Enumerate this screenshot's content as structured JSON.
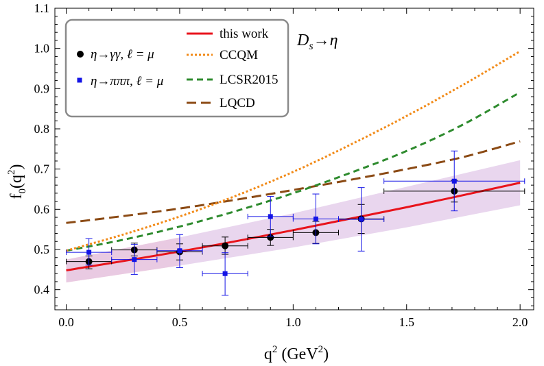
{
  "chart_data": {
    "type": "line",
    "title": "",
    "annotation": "D_s→η",
    "annotation_parts": [
      "D",
      "s",
      "→η"
    ],
    "xlabel": "q² (GeV²)",
    "xlabel_parts": [
      "q",
      "2",
      " (GeV",
      "2",
      ")"
    ],
    "ylabel": "f₀(q²)",
    "ylabel_parts": [
      "f",
      "0",
      "(q",
      "2",
      ")"
    ],
    "xlim": [
      -0.05,
      2.06
    ],
    "ylim": [
      0.35,
      1.1
    ],
    "xticks": [
      0.0,
      0.5,
      1.0,
      1.5,
      2.0
    ],
    "xtick_labels": [
      "0.0",
      "0.5",
      "1.0",
      "1.5",
      "2.0"
    ],
    "yticks": [
      0.4,
      0.5,
      0.6,
      0.7,
      0.8,
      0.9,
      1.0,
      1.1
    ],
    "ytick_labels": [
      "0.4",
      "0.5",
      "0.6",
      "0.7",
      "0.8",
      "0.9",
      "1.0",
      "1.1"
    ],
    "grid": false,
    "legend_position": "top-left",
    "curves": [
      {
        "name": "this work",
        "color": "#e8141c",
        "dash": "solid",
        "x": [
          0.0,
          0.5,
          1.0,
          1.5,
          2.0
        ],
        "y": [
          0.448,
          0.495,
          0.548,
          0.605,
          0.666
        ]
      },
      {
        "name": "CCQM",
        "color": "#f28a17",
        "dash": "dotted",
        "x": [
          0.0,
          0.25,
          0.5,
          0.75,
          1.0,
          1.25,
          1.5,
          1.75,
          2.0
        ],
        "y": [
          0.497,
          0.537,
          0.582,
          0.634,
          0.693,
          0.76,
          0.832,
          0.91,
          0.993
        ]
      },
      {
        "name": "LCSR2015",
        "color": "#2e8b2e",
        "dash": "dashed",
        "x": [
          0.0,
          0.25,
          0.5,
          0.75,
          1.0,
          1.25,
          1.5,
          1.75,
          2.0
        ],
        "y": [
          0.497,
          0.524,
          0.557,
          0.596,
          0.64,
          0.69,
          0.745,
          0.811,
          0.891
        ]
      },
      {
        "name": "LQCD",
        "color": "#8b4a14",
        "dash": "longdash",
        "x": [
          0.0,
          0.25,
          0.5,
          0.75,
          1.0,
          1.25,
          1.5,
          1.75,
          2.0
        ],
        "y": [
          0.566,
          0.583,
          0.602,
          0.624,
          0.648,
          0.673,
          0.7,
          0.73,
          0.769
        ]
      }
    ],
    "bands": [
      {
        "name": "this work uncertainty (low q²)",
        "color": "#ffc8c8",
        "x": [
          0.0,
          0.5
        ],
        "y_low": [
          0.418,
          0.46
        ],
        "y_high": [
          0.475,
          0.53
        ]
      },
      {
        "name": "this work uncertainty",
        "color": "#e2c8e8",
        "x": [
          0.0,
          0.5,
          1.0,
          1.5,
          2.0
        ],
        "y_low": [
          0.418,
          0.46,
          0.505,
          0.555,
          0.61
        ],
        "y_high": [
          0.475,
          0.53,
          0.59,
          0.656,
          0.722
        ]
      }
    ],
    "series": [
      {
        "name": "η→γγ, ℓ = μ",
        "marker": "circle",
        "color": "#000000",
        "points": [
          {
            "x": 0.1,
            "y": 0.47,
            "xlo": 0.0,
            "xhi": 0.2,
            "ylo": 0.452,
            "yhi": 0.484
          },
          {
            "x": 0.3,
            "y": 0.499,
            "xlo": 0.2,
            "xhi": 0.4,
            "ylo": 0.484,
            "yhi": 0.516
          },
          {
            "x": 0.5,
            "y": 0.494,
            "xlo": 0.4,
            "xhi": 0.6,
            "ylo": 0.474,
            "yhi": 0.514
          },
          {
            "x": 0.7,
            "y": 0.509,
            "xlo": 0.6,
            "xhi": 0.8,
            "ylo": 0.488,
            "yhi": 0.531
          },
          {
            "x": 0.9,
            "y": 0.53,
            "xlo": 0.8,
            "xhi": 1.0,
            "ylo": 0.51,
            "yhi": 0.55
          },
          {
            "x": 1.1,
            "y": 0.542,
            "xlo": 1.0,
            "xhi": 1.2,
            "ylo": 0.515,
            "yhi": 0.57
          },
          {
            "x": 1.3,
            "y": 0.576,
            "xlo": 1.2,
            "xhi": 1.4,
            "ylo": 0.54,
            "yhi": 0.612
          },
          {
            "x": 1.71,
            "y": 0.645,
            "xlo": 1.4,
            "xhi": 2.02,
            "ylo": 0.618,
            "yhi": 0.672
          }
        ]
      },
      {
        "name": "η→πππ, ℓ = μ",
        "marker": "square",
        "color": "#1414e6",
        "points": [
          {
            "x": 0.1,
            "y": 0.493,
            "xlo": 0.0,
            "xhi": 0.2,
            "ylo": 0.461,
            "yhi": 0.527
          },
          {
            "x": 0.3,
            "y": 0.475,
            "xlo": 0.2,
            "xhi": 0.4,
            "ylo": 0.438,
            "yhi": 0.513
          },
          {
            "x": 0.5,
            "y": 0.497,
            "xlo": 0.4,
            "xhi": 0.6,
            "ylo": 0.455,
            "yhi": 0.537
          },
          {
            "x": 0.7,
            "y": 0.44,
            "xlo": 0.6,
            "xhi": 0.8,
            "ylo": 0.386,
            "yhi": 0.492
          },
          {
            "x": 0.9,
            "y": 0.582,
            "xlo": 0.8,
            "xhi": 1.0,
            "ylo": 0.533,
            "yhi": 0.632
          },
          {
            "x": 1.1,
            "y": 0.576,
            "xlo": 1.0,
            "xhi": 1.2,
            "ylo": 0.514,
            "yhi": 0.638
          },
          {
            "x": 1.3,
            "y": 0.575,
            "xlo": 1.2,
            "xhi": 1.4,
            "ylo": 0.496,
            "yhi": 0.654
          },
          {
            "x": 1.71,
            "y": 0.67,
            "xlo": 1.4,
            "xhi": 2.02,
            "ylo": 0.596,
            "yhi": 0.745
          }
        ]
      }
    ]
  }
}
